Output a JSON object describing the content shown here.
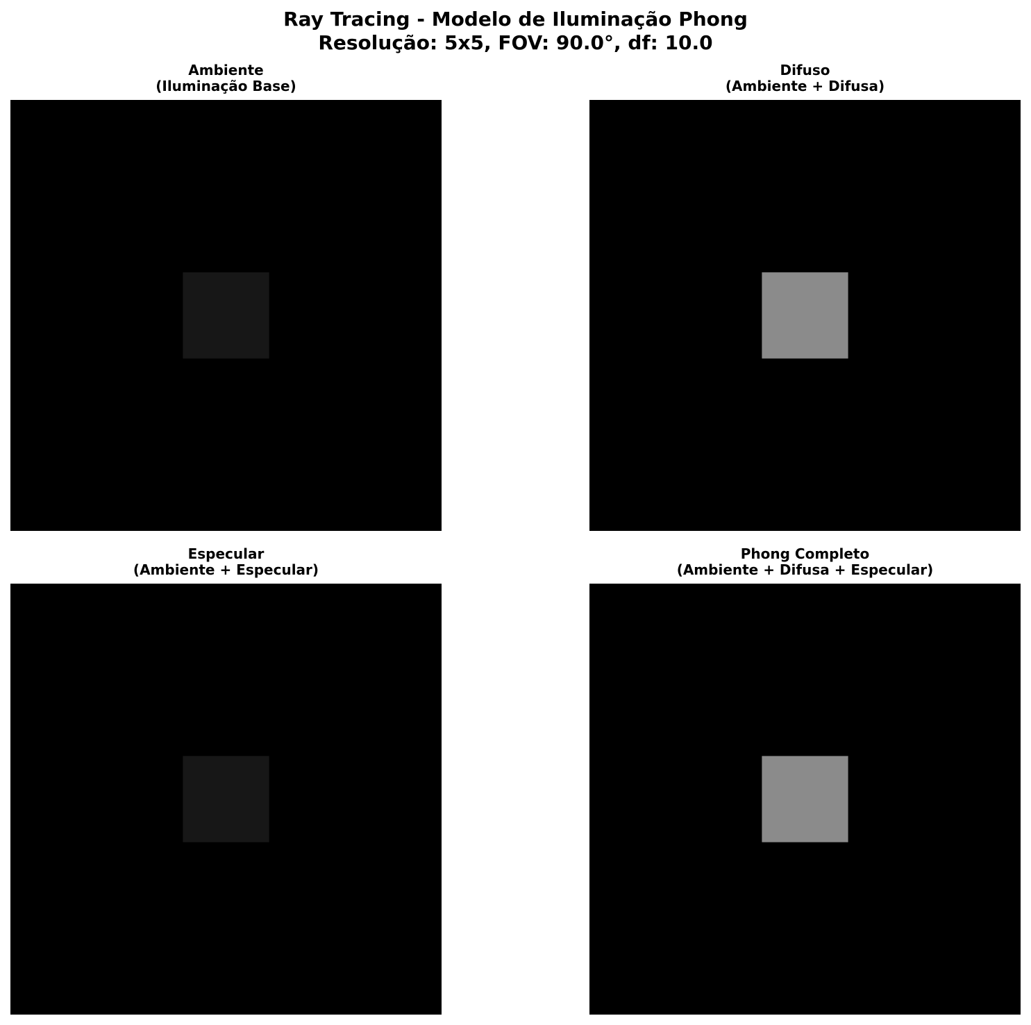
{
  "figure": {
    "title_line1": "Ray Tracing - Modelo de Iluminação Phong",
    "title_line2": "Resolução: 5x5, FOV: 90.0°, df: 10.0"
  },
  "chart_data": [
    {
      "type": "heatmap",
      "title": "Ambiente",
      "subtitle": "(Iluminação Base)",
      "axis": "off",
      "grid": false,
      "values": [
        [
          0,
          0,
          0,
          0,
          0
        ],
        [
          0,
          0,
          0,
          0,
          0
        ],
        [
          0,
          0,
          0.09,
          0,
          0
        ],
        [
          0,
          0,
          0,
          0,
          0
        ],
        [
          0,
          0,
          0,
          0,
          0
        ]
      ],
      "colors": {
        "background": "#000000",
        "lit_pixel": "#171717"
      }
    },
    {
      "type": "heatmap",
      "title": "Difuso",
      "subtitle": "(Ambiente + Difusa)",
      "axis": "off",
      "grid": false,
      "values": [
        [
          0,
          0,
          0,
          0,
          0
        ],
        [
          0,
          0,
          0,
          0,
          0
        ],
        [
          0,
          0,
          0.55,
          0,
          0
        ],
        [
          0,
          0,
          0,
          0,
          0
        ],
        [
          0,
          0,
          0,
          0,
          0
        ]
      ],
      "colors": {
        "background": "#000000",
        "lit_pixel": "#8b8b8b"
      }
    },
    {
      "type": "heatmap",
      "title": "Especular",
      "subtitle": "(Ambiente + Especular)",
      "axis": "off",
      "grid": false,
      "values": [
        [
          0,
          0,
          0,
          0,
          0
        ],
        [
          0,
          0,
          0,
          0,
          0
        ],
        [
          0,
          0,
          0.09,
          0,
          0
        ],
        [
          0,
          0,
          0,
          0,
          0
        ],
        [
          0,
          0,
          0,
          0,
          0
        ]
      ],
      "colors": {
        "background": "#000000",
        "lit_pixel": "#171717"
      }
    },
    {
      "type": "heatmap",
      "title": "Phong Completo",
      "subtitle": "(Ambiente + Difusa + Especular)",
      "axis": "off",
      "grid": false,
      "values": [
        [
          0,
          0,
          0,
          0,
          0
        ],
        [
          0,
          0,
          0,
          0,
          0
        ],
        [
          0,
          0,
          0.55,
          0,
          0
        ],
        [
          0,
          0,
          0,
          0,
          0
        ],
        [
          0,
          0,
          0,
          0,
          0
        ]
      ],
      "colors": {
        "background": "#000000",
        "lit_pixel": "#8b8b8b"
      }
    }
  ]
}
